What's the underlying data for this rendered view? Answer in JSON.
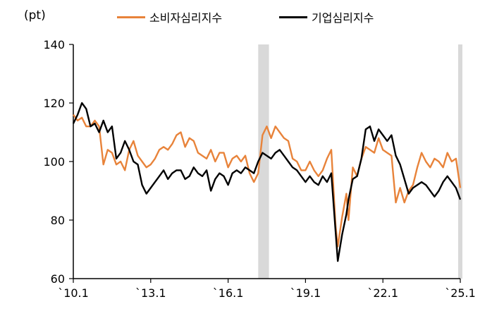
{
  "chart_data": {
    "type": "line",
    "unit_label": "(pt)",
    "x_tick_labels": [
      "`10.1",
      "`13.1",
      "`16.1",
      "`19.1",
      "`22.1",
      "`25.1"
    ],
    "x_range": [
      "2010-01",
      "2025-01"
    ],
    "ylim": [
      60,
      140
    ],
    "y_ticks": [
      60,
      80,
      100,
      120,
      140
    ],
    "grid": false,
    "legend_position": "top-center",
    "shaded_periods": [
      [
        "2017-03",
        "2017-08"
      ],
      [
        "2024-12",
        "2025-01"
      ]
    ],
    "shade_color": "#d9d9d9",
    "series": [
      {
        "name": "소비자심리지수",
        "color": "#e8833a",
        "points": [
          [
            "2010-01",
            116
          ],
          [
            "2010-03",
            114
          ],
          [
            "2010-05",
            115
          ],
          [
            "2010-07",
            112
          ],
          [
            "2010-09",
            112
          ],
          [
            "2010-11",
            114
          ],
          [
            "2011-01",
            112
          ],
          [
            "2011-03",
            99
          ],
          [
            "2011-05",
            104
          ],
          [
            "2011-07",
            103
          ],
          [
            "2011-09",
            99
          ],
          [
            "2011-11",
            100
          ],
          [
            "2012-01",
            97
          ],
          [
            "2012-03",
            104
          ],
          [
            "2012-05",
            107
          ],
          [
            "2012-07",
            102
          ],
          [
            "2012-09",
            100
          ],
          [
            "2012-11",
            98
          ],
          [
            "2013-01",
            99
          ],
          [
            "2013-03",
            101
          ],
          [
            "2013-05",
            104
          ],
          [
            "2013-07",
            105
          ],
          [
            "2013-09",
            104
          ],
          [
            "2013-11",
            106
          ],
          [
            "2014-01",
            109
          ],
          [
            "2014-03",
            110
          ],
          [
            "2014-05",
            105
          ],
          [
            "2014-07",
            108
          ],
          [
            "2014-09",
            107
          ],
          [
            "2014-11",
            103
          ],
          [
            "2015-01",
            102
          ],
          [
            "2015-03",
            101
          ],
          [
            "2015-05",
            104
          ],
          [
            "2015-07",
            100
          ],
          [
            "2015-09",
            103
          ],
          [
            "2015-11",
            103
          ],
          [
            "2016-01",
            98
          ],
          [
            "2016-03",
            101
          ],
          [
            "2016-05",
            102
          ],
          [
            "2016-07",
            100
          ],
          [
            "2016-09",
            102
          ],
          [
            "2016-11",
            96
          ],
          [
            "2017-01",
            93
          ],
          [
            "2017-03",
            96
          ],
          [
            "2017-05",
            109
          ],
          [
            "2017-07",
            112
          ],
          [
            "2017-09",
            108
          ],
          [
            "2017-11",
            112
          ],
          [
            "2018-01",
            110
          ],
          [
            "2018-03",
            108
          ],
          [
            "2018-05",
            107
          ],
          [
            "2018-07",
            101
          ],
          [
            "2018-09",
            100
          ],
          [
            "2018-11",
            97
          ],
          [
            "2019-01",
            97
          ],
          [
            "2019-03",
            100
          ],
          [
            "2019-05",
            97
          ],
          [
            "2019-07",
            95
          ],
          [
            "2019-09",
            97
          ],
          [
            "2019-11",
            101
          ],
          [
            "2020-01",
            104
          ],
          [
            "2020-03",
            78
          ],
          [
            "2020-04",
            71
          ],
          [
            "2020-06",
            81
          ],
          [
            "2020-08",
            89
          ],
          [
            "2020-09",
            80
          ],
          [
            "2020-11",
            98
          ],
          [
            "2021-01",
            95
          ],
          [
            "2021-03",
            101
          ],
          [
            "2021-05",
            105
          ],
          [
            "2021-07",
            104
          ],
          [
            "2021-09",
            103
          ],
          [
            "2021-11",
            108
          ],
          [
            "2022-01",
            104
          ],
          [
            "2022-03",
            103
          ],
          [
            "2022-05",
            102
          ],
          [
            "2022-07",
            86
          ],
          [
            "2022-09",
            91
          ],
          [
            "2022-11",
            86
          ],
          [
            "2023-01",
            90
          ],
          [
            "2023-03",
            92
          ],
          [
            "2023-05",
            98
          ],
          [
            "2023-07",
            103
          ],
          [
            "2023-09",
            100
          ],
          [
            "2023-11",
            98
          ],
          [
            "2024-01",
            101
          ],
          [
            "2024-03",
            100
          ],
          [
            "2024-05",
            98
          ],
          [
            "2024-07",
            103
          ],
          [
            "2024-09",
            100
          ],
          [
            "2024-11",
            101
          ],
          [
            "2025-01",
            91
          ]
        ]
      },
      {
        "name": "기업심리지수",
        "color": "#000000",
        "points": [
          [
            "2010-01",
            113
          ],
          [
            "2010-03",
            116
          ],
          [
            "2010-05",
            120
          ],
          [
            "2010-07",
            118
          ],
          [
            "2010-09",
            112
          ],
          [
            "2010-11",
            113
          ],
          [
            "2011-01",
            110
          ],
          [
            "2011-03",
            114
          ],
          [
            "2011-05",
            110
          ],
          [
            "2011-07",
            112
          ],
          [
            "2011-09",
            101
          ],
          [
            "2011-11",
            103
          ],
          [
            "2012-01",
            107
          ],
          [
            "2012-03",
            104
          ],
          [
            "2012-05",
            100
          ],
          [
            "2012-07",
            99
          ],
          [
            "2012-09",
            92
          ],
          [
            "2012-11",
            89
          ],
          [
            "2013-01",
            91
          ],
          [
            "2013-03",
            93
          ],
          [
            "2013-05",
            95
          ],
          [
            "2013-07",
            97
          ],
          [
            "2013-09",
            94
          ],
          [
            "2013-11",
            96
          ],
          [
            "2014-01",
            97
          ],
          [
            "2014-03",
            97
          ],
          [
            "2014-05",
            94
          ],
          [
            "2014-07",
            95
          ],
          [
            "2014-09",
            98
          ],
          [
            "2014-11",
            96
          ],
          [
            "2015-01",
            95
          ],
          [
            "2015-03",
            97
          ],
          [
            "2015-05",
            90
          ],
          [
            "2015-07",
            94
          ],
          [
            "2015-09",
            96
          ],
          [
            "2015-11",
            95
          ],
          [
            "2016-01",
            92
          ],
          [
            "2016-03",
            96
          ],
          [
            "2016-05",
            97
          ],
          [
            "2016-07",
            96
          ],
          [
            "2016-09",
            98
          ],
          [
            "2016-11",
            97
          ],
          [
            "2017-01",
            96
          ],
          [
            "2017-03",
            100
          ],
          [
            "2017-05",
            103
          ],
          [
            "2017-07",
            102
          ],
          [
            "2017-09",
            101
          ],
          [
            "2017-11",
            103
          ],
          [
            "2018-01",
            104
          ],
          [
            "2018-03",
            102
          ],
          [
            "2018-05",
            100
          ],
          [
            "2018-07",
            98
          ],
          [
            "2018-09",
            97
          ],
          [
            "2018-11",
            95
          ],
          [
            "2019-01",
            93
          ],
          [
            "2019-03",
            95
          ],
          [
            "2019-05",
            93
          ],
          [
            "2019-07",
            92
          ],
          [
            "2019-09",
            95
          ],
          [
            "2019-11",
            93
          ],
          [
            "2020-01",
            96
          ],
          [
            "2020-03",
            76
          ],
          [
            "2020-04",
            66
          ],
          [
            "2020-06",
            75
          ],
          [
            "2020-08",
            82
          ],
          [
            "2020-09",
            87
          ],
          [
            "2020-11",
            94
          ],
          [
            "2021-01",
            95
          ],
          [
            "2021-03",
            101
          ],
          [
            "2021-05",
            111
          ],
          [
            "2021-07",
            112
          ],
          [
            "2021-09",
            107
          ],
          [
            "2021-11",
            111
          ],
          [
            "2022-01",
            109
          ],
          [
            "2022-03",
            107
          ],
          [
            "2022-05",
            109
          ],
          [
            "2022-07",
            102
          ],
          [
            "2022-09",
            99
          ],
          [
            "2022-11",
            94
          ],
          [
            "2023-01",
            89
          ],
          [
            "2023-03",
            91
          ],
          [
            "2023-05",
            92
          ],
          [
            "2023-07",
            93
          ],
          [
            "2023-09",
            92
          ],
          [
            "2023-11",
            90
          ],
          [
            "2024-01",
            88
          ],
          [
            "2024-03",
            90
          ],
          [
            "2024-05",
            93
          ],
          [
            "2024-07",
            95
          ],
          [
            "2024-09",
            93
          ],
          [
            "2024-11",
            91
          ],
          [
            "2025-01",
            87
          ]
        ]
      }
    ]
  }
}
